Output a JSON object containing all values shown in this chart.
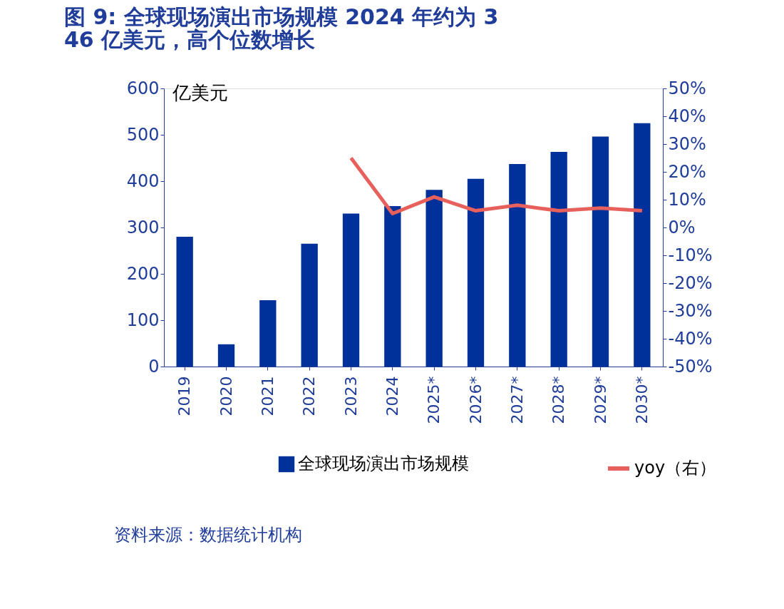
{
  "chart_data": {
    "type": "bar",
    "title": "图 9: 全球现场演出市场规模 2024 年约为 346 亿美元，高个位数增长",
    "ylabel": "亿美元",
    "categories": [
      "2019",
      "2020",
      "2021",
      "2022",
      "2023",
      "2024",
      "2025*",
      "2026*",
      "2027*",
      "2028*",
      "2029*",
      "2030*"
    ],
    "series": [
      {
        "name": "全球现场演出市场规模",
        "color": "#00309a",
        "values": [
          280,
          48,
          143,
          265,
          330,
          346,
          381,
          405,
          437,
          463,
          496,
          525
        ]
      },
      {
        "name": "yoy（右）",
        "type": "line",
        "axis": "y2",
        "color": "#e8605c",
        "values": [
          null,
          null,
          null,
          null,
          25,
          5,
          11,
          6,
          8,
          6,
          7,
          6
        ]
      }
    ],
    "ylim": [
      0,
      600
    ],
    "yticks": [
      0,
      100,
      200,
      300,
      400,
      500,
      600
    ],
    "y2lim": [
      -50,
      50
    ],
    "y2ticks": [
      {
        "value": -50,
        "label": "-50%"
      },
      {
        "value": -40,
        "label": "-40%"
      },
      {
        "value": -30,
        "label": "-30%"
      },
      {
        "value": -20,
        "label": "-20%"
      },
      {
        "value": -10,
        "label": "-10%"
      },
      {
        "value": 0,
        "label": "0%"
      },
      {
        "value": 10,
        "label": "10%"
      },
      {
        "value": 20,
        "label": "20%"
      },
      {
        "value": 30,
        "label": "30%"
      },
      {
        "value": 40,
        "label": "40%"
      },
      {
        "value": 50,
        "label": "50%"
      }
    ],
    "legend": "bottom",
    "grid": false,
    "annotations": [
      "资料来源：数据统计机构"
    ]
  }
}
